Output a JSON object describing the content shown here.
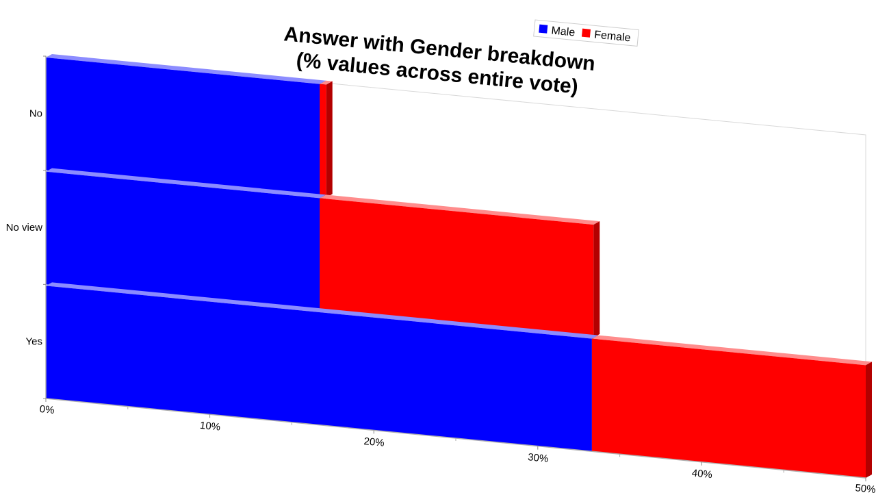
{
  "chart_data": {
    "type": "bar",
    "orientation": "horizontal",
    "stacked": true,
    "title": [
      "Answer with Gender breakdown",
      "(% values across entire vote)"
    ],
    "categories": [
      "No",
      "No view",
      "Yes"
    ],
    "series": [
      {
        "name": "Male",
        "values": [
          16.7,
          16.7,
          33.3
        ],
        "color": "#0000ff"
      },
      {
        "name": "Female",
        "values": [
          0.4,
          16.7,
          16.7
        ],
        "color": "#ff0000"
      }
    ],
    "xlim": [
      0,
      50
    ],
    "xticks": [
      "0%",
      "10%",
      "20%",
      "30%",
      "40%",
      "50%"
    ],
    "legend": {
      "position": "top-right",
      "labels": [
        "Male",
        "Female"
      ]
    },
    "grid": false,
    "style": "3d-perspective"
  }
}
